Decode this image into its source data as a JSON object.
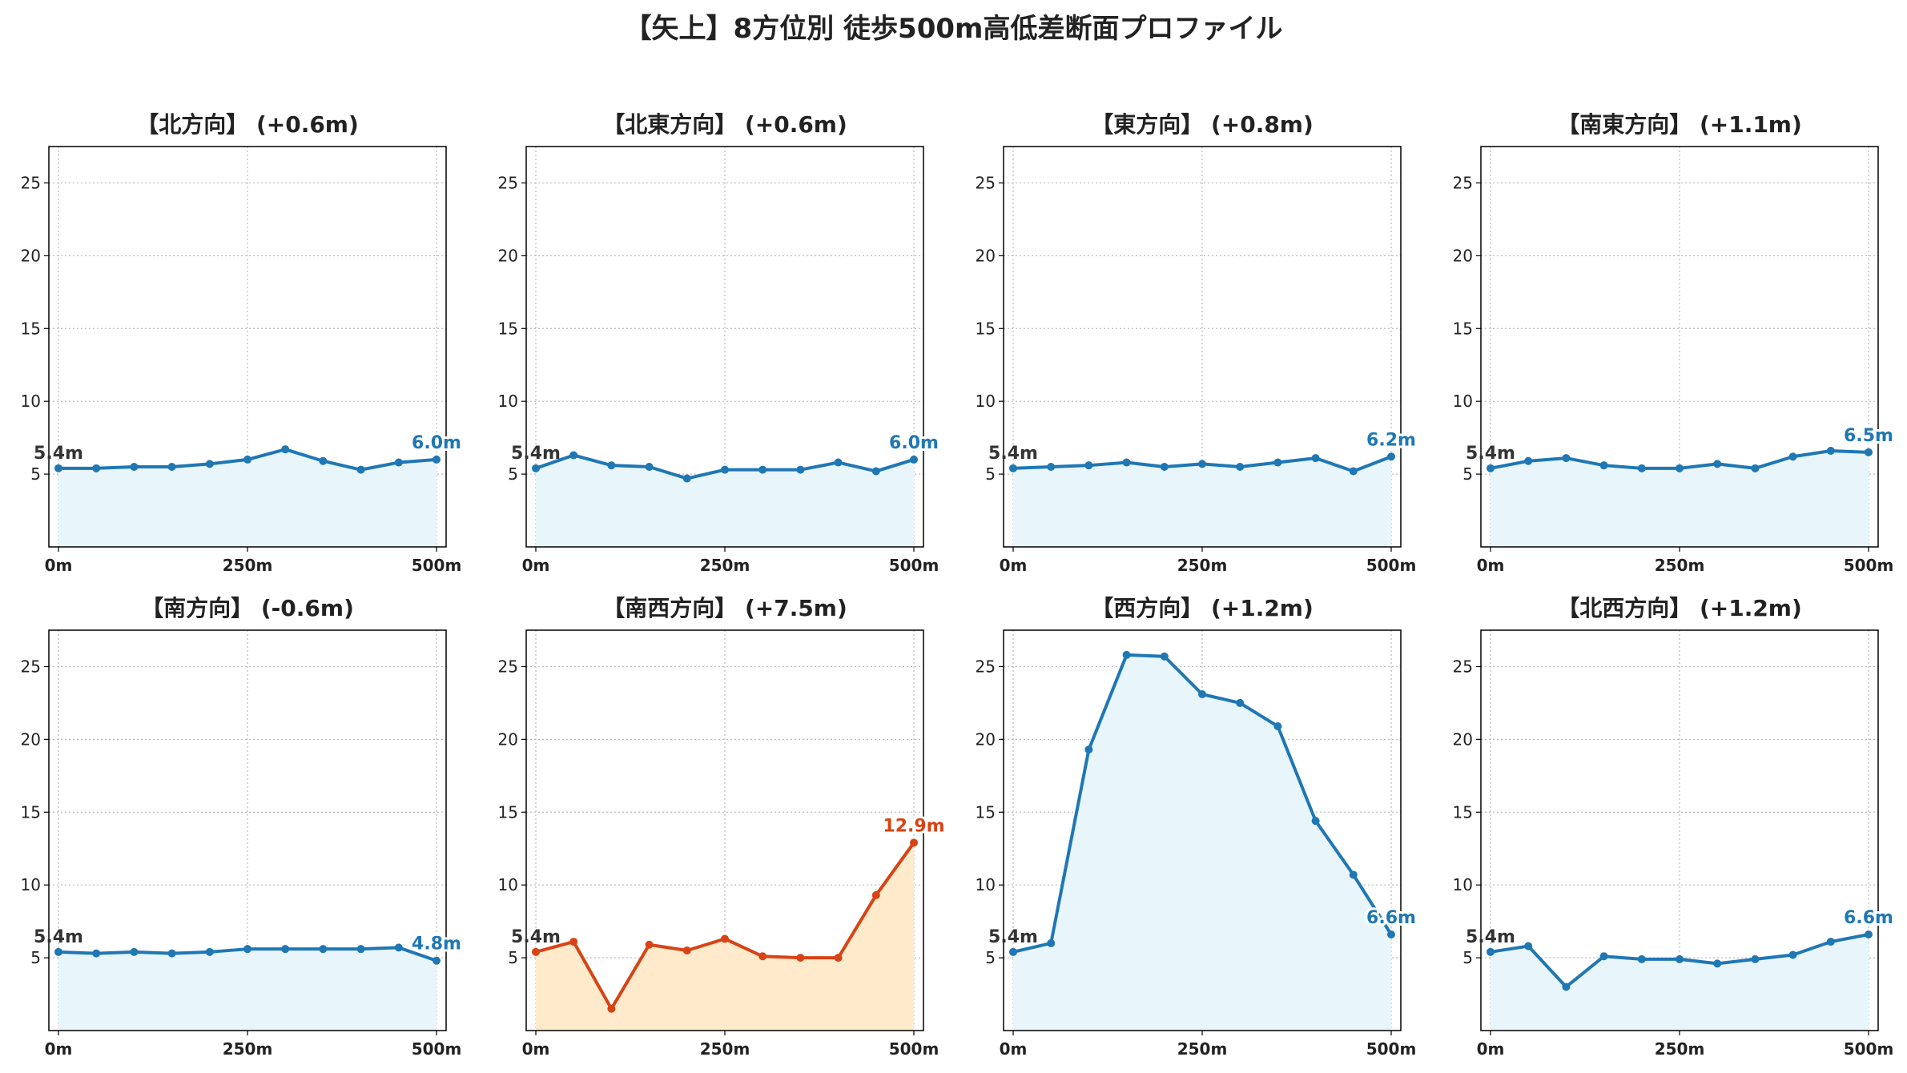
{
  "figure": {
    "title": "【矢上】8方位別 徒歩500m高低差断面プロファイル",
    "colors": {
      "normal_line": "#1f77b4",
      "normal_fill": "#e8f5fb",
      "highlight_line": "#d84315",
      "highlight_fill": "#ffebcc",
      "grid": "#bbbbbb",
      "axis": "#000000"
    }
  },
  "chart_data": [
    {
      "type": "line",
      "title": "【北方向】 (+0.6m)",
      "x": [
        0,
        50,
        100,
        150,
        200,
        250,
        300,
        350,
        400,
        450,
        500
      ],
      "values": [
        5.4,
        5.4,
        5.5,
        5.5,
        5.7,
        6.0,
        6.7,
        5.9,
        5.3,
        5.8,
        6.0
      ],
      "start_label": "5.4m",
      "end_label": "6.0m",
      "highlight": false,
      "xticks": [
        "0m",
        "250m",
        "500m"
      ],
      "yticks": [
        5,
        10,
        15,
        20,
        25
      ],
      "xlim": [
        0,
        500
      ],
      "ylim": [
        0,
        27.5
      ],
      "grid": true
    },
    {
      "type": "line",
      "title": "【北東方向】 (+0.6m)",
      "x": [
        0,
        50,
        100,
        150,
        200,
        250,
        300,
        350,
        400,
        450,
        500
      ],
      "values": [
        5.4,
        6.3,
        5.6,
        5.5,
        4.7,
        5.3,
        5.3,
        5.3,
        5.8,
        5.2,
        6.0
      ],
      "start_label": "5.4m",
      "end_label": "6.0m",
      "highlight": false,
      "xticks": [
        "0m",
        "250m",
        "500m"
      ],
      "yticks": [
        5,
        10,
        15,
        20,
        25
      ],
      "xlim": [
        0,
        500
      ],
      "ylim": [
        0,
        27.5
      ],
      "grid": true
    },
    {
      "type": "line",
      "title": "【東方向】 (+0.8m)",
      "x": [
        0,
        50,
        100,
        150,
        200,
        250,
        300,
        350,
        400,
        450,
        500
      ],
      "values": [
        5.4,
        5.5,
        5.6,
        5.8,
        5.5,
        5.7,
        5.5,
        5.8,
        6.1,
        5.2,
        6.2
      ],
      "start_label": "5.4m",
      "end_label": "6.2m",
      "highlight": false,
      "xticks": [
        "0m",
        "250m",
        "500m"
      ],
      "yticks": [
        5,
        10,
        15,
        20,
        25
      ],
      "xlim": [
        0,
        500
      ],
      "ylim": [
        0,
        27.5
      ],
      "grid": true
    },
    {
      "type": "line",
      "title": "【南東方向】 (+1.1m)",
      "x": [
        0,
        50,
        100,
        150,
        200,
        250,
        300,
        350,
        400,
        450,
        500
      ],
      "values": [
        5.4,
        5.9,
        6.1,
        5.6,
        5.4,
        5.4,
        5.7,
        5.4,
        6.2,
        6.6,
        6.5
      ],
      "start_label": "5.4m",
      "end_label": "6.5m",
      "highlight": false,
      "xticks": [
        "0m",
        "250m",
        "500m"
      ],
      "yticks": [
        5,
        10,
        15,
        20,
        25
      ],
      "xlim": [
        0,
        500
      ],
      "ylim": [
        0,
        27.5
      ],
      "grid": true
    },
    {
      "type": "line",
      "title": "【南方向】 (-0.6m)",
      "x": [
        0,
        50,
        100,
        150,
        200,
        250,
        300,
        350,
        400,
        450,
        500
      ],
      "values": [
        5.4,
        5.3,
        5.4,
        5.3,
        5.4,
        5.6,
        5.6,
        5.6,
        5.6,
        5.7,
        4.8
      ],
      "start_label": "5.4m",
      "end_label": "4.8m",
      "highlight": false,
      "xticks": [
        "0m",
        "250m",
        "500m"
      ],
      "yticks": [
        5,
        10,
        15,
        20,
        25
      ],
      "xlim": [
        0,
        500
      ],
      "ylim": [
        0,
        27.5
      ],
      "grid": true
    },
    {
      "type": "line",
      "title": "【南西方向】 (+7.5m)",
      "x": [
        0,
        50,
        100,
        150,
        200,
        250,
        300,
        350,
        400,
        450,
        500
      ],
      "values": [
        5.4,
        6.1,
        1.5,
        5.9,
        5.5,
        6.3,
        5.1,
        5.0,
        5.0,
        9.3,
        12.9
      ],
      "start_label": "5.4m",
      "end_label": "12.9m",
      "highlight": true,
      "xticks": [
        "0m",
        "250m",
        "500m"
      ],
      "yticks": [
        5,
        10,
        15,
        20,
        25
      ],
      "xlim": [
        0,
        500
      ],
      "ylim": [
        0,
        27.5
      ],
      "grid": true
    },
    {
      "type": "line",
      "title": "【西方向】 (+1.2m)",
      "x": [
        0,
        50,
        100,
        150,
        200,
        250,
        300,
        350,
        400,
        450,
        500
      ],
      "values": [
        5.4,
        6.0,
        19.3,
        25.8,
        25.7,
        23.1,
        22.5,
        20.9,
        14.4,
        10.7,
        6.6
      ],
      "start_label": "5.4m",
      "end_label": "6.6m",
      "highlight": false,
      "xticks": [
        "0m",
        "250m",
        "500m"
      ],
      "yticks": [
        5,
        10,
        15,
        20,
        25
      ],
      "xlim": [
        0,
        500
      ],
      "ylim": [
        0,
        27.5
      ],
      "grid": true
    },
    {
      "type": "line",
      "title": "【北西方向】 (+1.2m)",
      "x": [
        0,
        50,
        100,
        150,
        200,
        250,
        300,
        350,
        400,
        450,
        500
      ],
      "values": [
        5.4,
        5.8,
        3.0,
        5.1,
        4.9,
        4.9,
        4.6,
        4.9,
        5.2,
        6.1,
        6.6
      ],
      "start_label": "5.4m",
      "end_label": "6.6m",
      "highlight": false,
      "xticks": [
        "0m",
        "250m",
        "500m"
      ],
      "yticks": [
        5,
        10,
        15,
        20,
        25
      ],
      "xlim": [
        0,
        500
      ],
      "ylim": [
        0,
        27.5
      ],
      "grid": true
    }
  ]
}
